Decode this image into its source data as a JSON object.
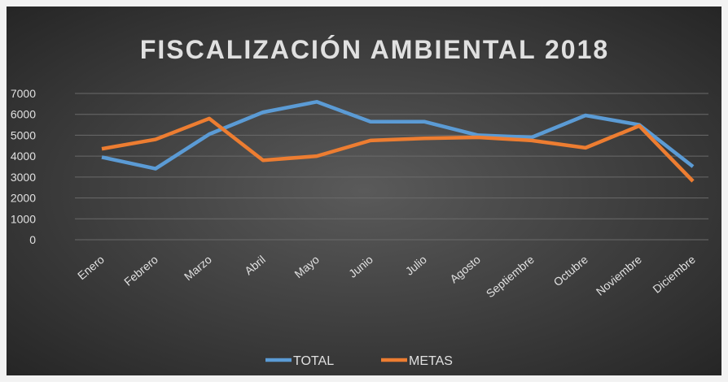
{
  "chart_data": {
    "type": "line",
    "title": "FISCALIZACIÓN  AMBIENTAL  2018",
    "categories": [
      "Enero",
      "Febrero",
      "Marzo",
      "Abril",
      "Mayo",
      "Junio",
      "Julio",
      "Agosto",
      "Septiembre",
      "Octubre",
      "Noviembre",
      "Diciembre"
    ],
    "series": [
      {
        "name": "TOTAL",
        "color": "#5b9bd5",
        "values": [
          3950,
          3400,
          5050,
          6100,
          6600,
          5650,
          5650,
          5000,
          4900,
          5950,
          5500,
          3500
        ]
      },
      {
        "name": "METAS",
        "color": "#ed7d31",
        "values": [
          4350,
          4800,
          5800,
          3800,
          4000,
          4750,
          4850,
          4900,
          4750,
          4400,
          5450,
          2800
        ]
      }
    ],
    "ylim": [
      0,
      7000
    ],
    "yticks": [
      0,
      1000,
      2000,
      3000,
      4000,
      5000,
      6000,
      7000
    ],
    "grid": true,
    "legend": "bottom"
  }
}
